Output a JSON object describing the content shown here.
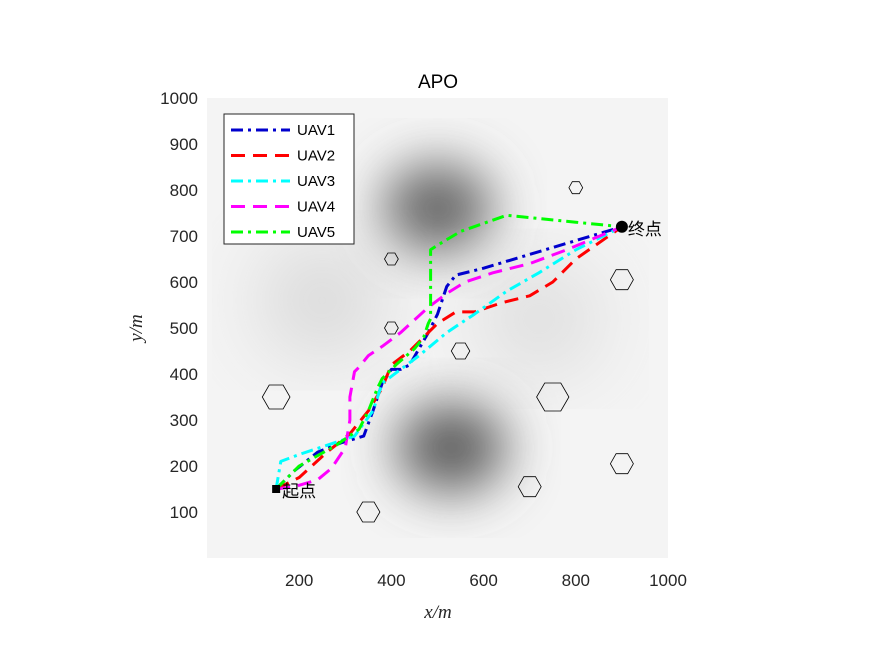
{
  "chart_data": {
    "type": "line",
    "title": "APO",
    "xlabel": "x/m",
    "ylabel": "y/m",
    "xlim": [
      0,
      1000
    ],
    "ylim": [
      0,
      1000
    ],
    "xticks": [
      200,
      400,
      600,
      800,
      1000
    ],
    "yticks": [
      100,
      200,
      300,
      400,
      500,
      600,
      700,
      800,
      900,
      1000
    ],
    "grid": false,
    "legend_position": "top-left",
    "background": "grayscale terrain with dark peaks",
    "peaks": [
      {
        "x": 500,
        "y": 760,
        "strength": 0.85
      },
      {
        "x": 530,
        "y": 240,
        "strength": 0.9
      },
      {
        "x": 250,
        "y": 560,
        "strength": 0.3
      },
      {
        "x": 720,
        "y": 520,
        "strength": 0.25
      }
    ],
    "obstacles": [
      {
        "x": 800,
        "y": 805,
        "r": 15
      },
      {
        "x": 400,
        "y": 650,
        "r": 15
      },
      {
        "x": 900,
        "y": 605,
        "r": 25
      },
      {
        "x": 400,
        "y": 500,
        "r": 15
      },
      {
        "x": 550,
        "y": 450,
        "r": 20
      },
      {
        "x": 150,
        "y": 350,
        "r": 30
      },
      {
        "x": 750,
        "y": 350,
        "r": 35
      },
      {
        "x": 700,
        "y": 155,
        "r": 25
      },
      {
        "x": 900,
        "y": 205,
        "r": 25
      },
      {
        "x": 350,
        "y": 100,
        "r": 25
      }
    ],
    "start": {
      "x": 150,
      "y": 150,
      "label": "起点"
    },
    "end": {
      "x": 900,
      "y": 720,
      "label": "终点"
    },
    "series": [
      {
        "name": "UAV1",
        "color": "#0000cd",
        "dash": "dashdot",
        "x": [
          150,
          190,
          240,
          290,
          340,
          360,
          380,
          400,
          420,
          440,
          480,
          500,
          520,
          540,
          600,
          700,
          800,
          900
        ],
        "y": [
          150,
          190,
          230,
          250,
          265,
          320,
          380,
          410,
          410,
          420,
          490,
          530,
          590,
          615,
          630,
          660,
          690,
          720
        ]
      },
      {
        "name": "UAV2",
        "color": "#ff0000",
        "dash": "dashed",
        "x": [
          150,
          200,
          260,
          310,
          350,
          380,
          400,
          440,
          480,
          500,
          540,
          580,
          640,
          700,
          750,
          800,
          900
        ],
        "y": [
          150,
          175,
          230,
          270,
          320,
          370,
          420,
          450,
          490,
          510,
          535,
          535,
          555,
          570,
          600,
          650,
          720
        ]
      },
      {
        "name": "UAV3",
        "color": "#00ffff",
        "dash": "dashdot",
        "x": [
          150,
          160,
          200,
          260,
          320,
          360,
          380,
          420,
          460,
          520,
          580,
          650,
          720,
          800,
          900
        ],
        "y": [
          150,
          210,
          225,
          245,
          265,
          320,
          380,
          410,
          440,
          490,
          530,
          580,
          620,
          670,
          720
        ]
      },
      {
        "name": "UAV4",
        "color": "#ff00ff",
        "dash": "dashed",
        "x": [
          150,
          190,
          240,
          270,
          300,
          310,
          310,
          320,
          330,
          350,
          380,
          420,
          480,
          520,
          560,
          620,
          700,
          780,
          900
        ],
        "y": [
          150,
          155,
          170,
          195,
          240,
          300,
          350,
          405,
          415,
          440,
          460,
          490,
          545,
          575,
          600,
          620,
          640,
          670,
          720
        ]
      },
      {
        "name": "UAV5",
        "color": "#00ff00",
        "dash": "dashdot",
        "x": [
          150,
          200,
          280,
          330,
          350,
          370,
          380,
          410,
          450,
          470,
          480,
          485,
          485,
          500,
          550,
          650,
          800,
          900
        ],
        "y": [
          150,
          200,
          245,
          280,
          320,
          370,
          390,
          420,
          455,
          480,
          510,
          520,
          670,
          680,
          710,
          745,
          730,
          720
        ]
      }
    ]
  }
}
